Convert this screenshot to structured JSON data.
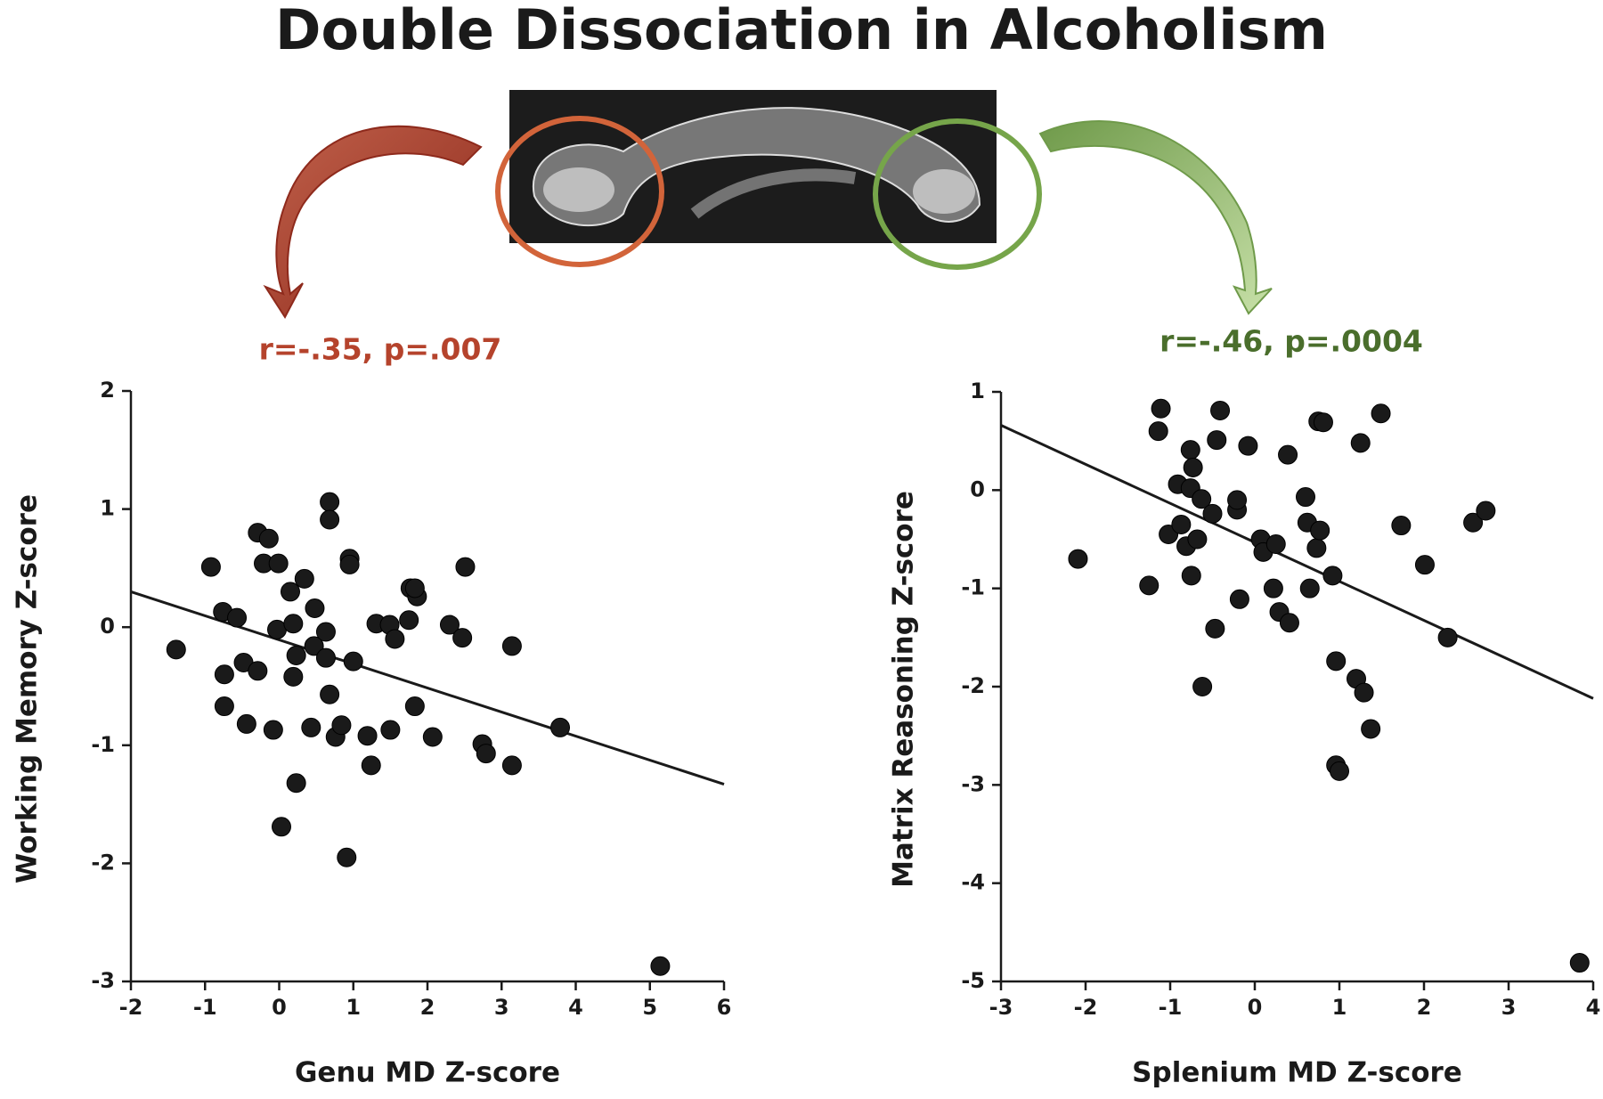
{
  "title": "Double Dissociation in Alcoholism",
  "chart_data": [
    {
      "type": "scatter",
      "annotation": "r=-.35, p=.007",
      "annotation_color": "#b5432c",
      "xlabel": "Genu MD Z-score",
      "ylabel": "Working Memory Z-score",
      "color": "#1a1a1a",
      "xlim": [
        -2,
        6
      ],
      "ylim": [
        -3,
        2
      ],
      "xticks": [
        -2,
        -1,
        0,
        1,
        2,
        3,
        4,
        5,
        6
      ],
      "yticks": [
        -3,
        -2,
        -1,
        0,
        1,
        2
      ],
      "x": [
        -1.39,
        -0.92,
        -0.76,
        -0.57,
        -0.74,
        -0.48,
        -0.74,
        -0.44,
        -0.29,
        -0.29,
        -0.14,
        -0.21,
        -0.01,
        -0.03,
        -0.08,
        0.03,
        0.23,
        0.15,
        0.34,
        0.19,
        0.23,
        0.19,
        0.48,
        0.47,
        0.43,
        0.63,
        0.63,
        0.68,
        0.68,
        0.68,
        0.76,
        0.84,
        0.95,
        0.95,
        1.0,
        0.91,
        1.19,
        1.24,
        1.31,
        1.49,
        1.56,
        1.5,
        1.75,
        1.77,
        1.86,
        1.83,
        1.83,
        2.07,
        2.3,
        2.47,
        2.51,
        2.74,
        2.79,
        3.14,
        3.14,
        3.79,
        5.14
      ],
      "values": [
        -0.19,
        0.51,
        0.13,
        0.08,
        -0.4,
        -0.3,
        -0.67,
        -0.82,
        -0.37,
        0.8,
        0.75,
        0.54,
        0.54,
        -0.02,
        -0.87,
        -1.69,
        -1.32,
        0.3,
        0.41,
        0.03,
        -0.24,
        -0.42,
        0.16,
        -0.16,
        -0.85,
        -0.04,
        -0.26,
        1.06,
        0.91,
        -0.57,
        -0.93,
        -0.83,
        0.58,
        0.53,
        -0.29,
        -1.95,
        -0.92,
        -1.17,
        0.03,
        0.02,
        -0.1,
        -0.87,
        0.06,
        0.33,
        0.26,
        0.33,
        -0.67,
        -0.93,
        0.02,
        -0.09,
        0.51,
        -0.99,
        -1.07,
        -0.16,
        -1.17,
        -0.85,
        -2.87
      ],
      "trendline": {
        "x": [
          -2,
          6
        ],
        "values": [
          0.3,
          -1.33
        ]
      }
    },
    {
      "type": "scatter",
      "annotation": "r=-.46, p=.0004",
      "annotation_color": "#4a6e2c",
      "xlabel": "Splenium MD Z-score",
      "ylabel": "Matrix Reasoning Z-score",
      "color": "#1a1a1a",
      "xlim": [
        -3,
        4
      ],
      "ylim": [
        -5,
        1
      ],
      "xticks": [
        -3,
        -2,
        -1,
        0,
        1,
        2,
        3,
        4
      ],
      "yticks": [
        -5,
        -4,
        -3,
        -2,
        -1,
        0,
        1
      ],
      "x": [
        -2.09,
        -1.25,
        -1.11,
        -1.14,
        -1.02,
        -0.91,
        -0.87,
        -0.76,
        -0.73,
        -0.76,
        -0.81,
        -0.75,
        -0.68,
        -0.63,
        -0.62,
        -0.5,
        -0.47,
        -0.45,
        -0.41,
        -0.21,
        -0.21,
        -0.18,
        -0.08,
        0.07,
        0.1,
        0.25,
        0.22,
        0.29,
        0.41,
        0.39,
        0.6,
        0.62,
        0.65,
        0.73,
        0.77,
        0.75,
        0.81,
        0.92,
        0.96,
        0.96,
        1.0,
        1.2,
        1.29,
        1.37,
        1.25,
        1.49,
        1.73,
        2.01,
        2.28,
        2.58,
        2.73,
        3.84
      ],
      "values": [
        -0.7,
        -0.97,
        0.83,
        0.6,
        -0.45,
        0.06,
        -0.35,
        0.41,
        0.23,
        0.02,
        -0.57,
        -0.87,
        -0.5,
        -0.09,
        -2.0,
        -0.24,
        -1.41,
        0.51,
        0.81,
        -0.2,
        -0.1,
        -1.11,
        0.45,
        -0.5,
        -0.63,
        -0.55,
        -1.0,
        -1.24,
        -1.35,
        0.36,
        -0.07,
        -0.33,
        -1.0,
        -0.59,
        -0.41,
        0.7,
        0.69,
        -0.87,
        -1.74,
        -2.8,
        -2.86,
        -1.92,
        -2.06,
        -2.43,
        0.48,
        0.78,
        -0.36,
        -0.76,
        -1.5,
        -0.33,
        -0.21,
        -4.81
      ],
      "trendline": {
        "x": [
          -3,
          4
        ],
        "values": [
          0.66,
          -2.12
        ]
      }
    }
  ]
}
